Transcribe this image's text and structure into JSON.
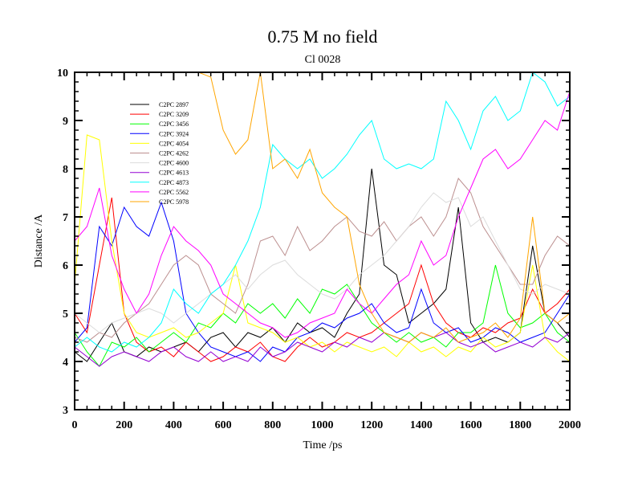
{
  "chart_data": {
    "type": "line",
    "title": "0.75 M no field",
    "subtitle": "Cl 0028",
    "xlabel": "Time /ps",
    "ylabel": "Distance /A",
    "xlim": [
      0,
      2000
    ],
    "ylim": [
      3,
      10
    ],
    "xticks": [
      0,
      200,
      400,
      600,
      800,
      1000,
      1200,
      1400,
      1600,
      1800,
      2000
    ],
    "yticks": [
      3,
      4,
      5,
      6,
      7,
      8,
      9,
      10
    ],
    "grid": false,
    "legend": "top-left",
    "x": [
      0,
      50,
      100,
      150,
      200,
      250,
      300,
      350,
      400,
      450,
      500,
      550,
      600,
      650,
      700,
      750,
      800,
      850,
      900,
      950,
      1000,
      1050,
      1100,
      1150,
      1200,
      1250,
      1300,
      1350,
      1400,
      1450,
      1500,
      1550,
      1600,
      1650,
      1700,
      1750,
      1800,
      1850,
      1900,
      1950,
      2000
    ],
    "series": [
      {
        "name": "C2PC 2897",
        "color": "#000000",
        "values": [
          4.2,
          4.0,
          4.4,
          4.8,
          4.2,
          4.1,
          4.3,
          4.2,
          4.3,
          4.4,
          4.2,
          4.5,
          4.6,
          4.3,
          4.6,
          4.5,
          4.7,
          4.4,
          4.8,
          4.6,
          4.7,
          4.5,
          5.0,
          5.4,
          8.0,
          6.0,
          5.8,
          4.8,
          5.0,
          5.2,
          5.5,
          7.2,
          4.8,
          4.4,
          4.5,
          4.4,
          4.6,
          6.4,
          5.0,
          4.8,
          4.5
        ]
      },
      {
        "name": "C2PC 3209",
        "color": "#ff0000",
        "values": [
          5.0,
          4.6,
          6.0,
          7.4,
          5.0,
          4.4,
          4.2,
          4.3,
          4.1,
          4.4,
          4.2,
          4.0,
          4.1,
          4.3,
          4.2,
          4.4,
          4.1,
          4.0,
          4.3,
          4.5,
          4.3,
          4.4,
          4.6,
          4.5,
          4.6,
          4.8,
          5.0,
          5.2,
          6.0,
          5.2,
          4.8,
          4.6,
          4.5,
          4.7,
          4.6,
          4.8,
          4.9,
          5.5,
          5.0,
          5.2,
          5.5
        ]
      },
      {
        "name": "C2PC 3456",
        "color": "#00ff00",
        "values": [
          4.6,
          4.2,
          3.9,
          4.4,
          4.3,
          4.5,
          4.2,
          4.4,
          4.6,
          4.4,
          4.8,
          4.7,
          5.0,
          4.8,
          5.2,
          5.0,
          5.2,
          4.9,
          5.3,
          5.0,
          5.5,
          5.4,
          5.6,
          5.2,
          4.8,
          4.6,
          4.4,
          4.6,
          4.4,
          4.5,
          4.3,
          4.6,
          4.6,
          4.8,
          6.0,
          5.0,
          4.7,
          4.8,
          5.0,
          4.6,
          4.4
        ]
      },
      {
        "name": "C2PC 3924",
        "color": "#0000ff",
        "values": [
          4.4,
          4.7,
          6.8,
          6.4,
          7.2,
          6.8,
          6.6,
          7.3,
          6.5,
          5.0,
          4.6,
          4.3,
          4.2,
          4.1,
          4.2,
          4.0,
          4.3,
          4.2,
          4.5,
          4.6,
          4.8,
          4.7,
          4.9,
          5.0,
          5.2,
          4.8,
          4.6,
          4.7,
          5.5,
          4.8,
          4.6,
          4.7,
          4.4,
          4.5,
          4.7,
          4.6,
          4.4,
          4.5,
          4.6,
          5.0,
          5.4
        ]
      },
      {
        "name": "C2PC 4054",
        "color": "#ffff00",
        "values": [
          5.6,
          8.7,
          8.6,
          6.5,
          5.0,
          4.6,
          4.5,
          4.6,
          4.7,
          4.5,
          4.6,
          4.8,
          5.0,
          6.0,
          4.8,
          4.7,
          4.6,
          4.4,
          4.5,
          4.3,
          4.4,
          4.2,
          4.4,
          4.3,
          4.2,
          4.3,
          4.1,
          4.4,
          4.2,
          4.3,
          4.1,
          4.3,
          4.2,
          4.5,
          4.3,
          4.4,
          4.6,
          6.0,
          4.5,
          4.2,
          4.0
        ]
      },
      {
        "name": "C2PC 4262",
        "color": "#bc8f8f",
        "values": [
          4.5,
          4.4,
          4.6,
          4.5,
          4.8,
          5.0,
          5.2,
          5.6,
          6.0,
          6.2,
          6.0,
          5.4,
          5.2,
          5.0,
          5.6,
          6.5,
          6.6,
          6.2,
          6.8,
          6.3,
          6.5,
          6.8,
          7.0,
          6.7,
          6.6,
          6.9,
          6.5,
          6.8,
          7.0,
          6.6,
          7.0,
          7.8,
          7.5,
          6.8,
          6.4,
          6.0,
          5.6,
          5.6,
          6.2,
          6.6,
          6.4
        ]
      },
      {
        "name": "C2PC 4600",
        "color": "#dcdcdc",
        "values": [
          5.0,
          4.8,
          4.6,
          4.8,
          4.9,
          5.0,
          5.1,
          5.0,
          4.8,
          5.0,
          5.2,
          5.4,
          5.6,
          5.8,
          5.5,
          5.8,
          6.0,
          6.1,
          5.8,
          5.6,
          5.4,
          5.3,
          5.5,
          5.8,
          6.0,
          6.2,
          6.5,
          6.8,
          7.2,
          7.5,
          7.3,
          7.4,
          6.8,
          7.0,
          6.5,
          6.0,
          5.5,
          5.4,
          5.6,
          5.5,
          5.4
        ]
      },
      {
        "name": "C2PC 4613",
        "color": "#9400d3",
        "values": [
          4.3,
          4.1,
          3.9,
          4.1,
          4.2,
          4.1,
          4.0,
          4.2,
          4.3,
          4.1,
          4.0,
          4.2,
          4.0,
          4.1,
          4.0,
          4.3,
          4.1,
          4.2,
          4.4,
          4.3,
          4.2,
          4.4,
          4.3,
          4.5,
          4.4,
          4.6,
          4.5,
          4.4,
          4.6,
          4.5,
          4.6,
          4.4,
          4.3,
          4.4,
          4.2,
          4.3,
          4.4,
          4.3,
          4.5,
          4.4,
          4.6
        ]
      },
      {
        "name": "C2PC 4873",
        "color": "#00ffff",
        "values": [
          4.3,
          4.5,
          4.3,
          4.2,
          4.4,
          4.3,
          4.5,
          4.8,
          5.5,
          5.2,
          5.0,
          5.4,
          5.6,
          6.0,
          6.5,
          7.2,
          8.5,
          8.2,
          8.0,
          8.2,
          7.8,
          8.0,
          8.3,
          8.7,
          9.0,
          8.2,
          8.0,
          8.1,
          8.0,
          8.2,
          9.4,
          9.0,
          8.4,
          9.2,
          9.5,
          9.0,
          9.2,
          10.0,
          9.8,
          9.3,
          9.5
        ]
      },
      {
        "name": "C2PC 5562",
        "color": "#ff00ff",
        "values": [
          6.5,
          6.8,
          7.6,
          6.2,
          5.5,
          5.0,
          5.4,
          6.2,
          6.8,
          6.5,
          6.3,
          6.0,
          5.4,
          5.2,
          5.0,
          4.8,
          4.7,
          4.5,
          4.6,
          4.8,
          4.9,
          5.0,
          5.5,
          5.2,
          5.0,
          5.3,
          5.6,
          5.8,
          6.5,
          6.0,
          6.2,
          7.0,
          7.6,
          8.2,
          8.4,
          8.0,
          8.2,
          8.6,
          9.0,
          8.8,
          9.6
        ]
      },
      {
        "name": "C2PC 5978",
        "color": "#ffa500",
        "values": [
          null,
          null,
          null,
          null,
          null,
          null,
          10.0,
          null,
          null,
          null,
          10.0,
          9.9,
          8.8,
          8.3,
          8.6,
          10.0,
          8.0,
          8.2,
          7.8,
          8.4,
          7.5,
          7.2,
          7.0,
          5.6,
          5.0,
          4.6,
          4.5,
          4.4,
          4.6,
          4.5,
          4.7,
          4.4,
          4.5,
          4.6,
          4.8,
          4.5,
          4.9,
          7.0,
          5.0,
          4.8,
          5.0
        ]
      }
    ]
  }
}
